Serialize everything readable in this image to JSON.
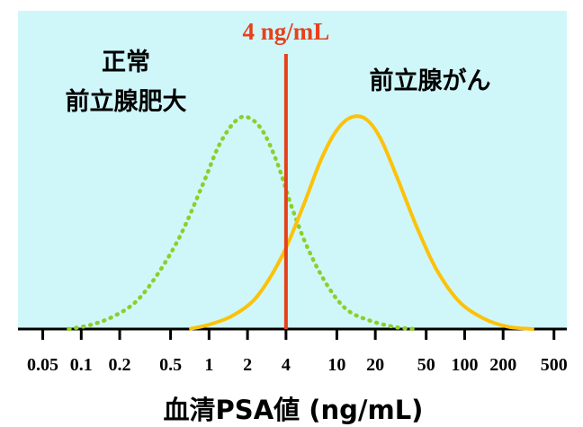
{
  "chart_data": {
    "type": "line",
    "xscale": "log",
    "xlabel": "血清PSA値 (ng/mL)",
    "x_ticks": [
      {
        "value": 0.05,
        "label": "0.05"
      },
      {
        "value": 0.1,
        "label": "0.1"
      },
      {
        "value": 0.2,
        "label": "0.2"
      },
      {
        "value": 0.5,
        "label": "0.5"
      },
      {
        "value": 1,
        "label": "1"
      },
      {
        "value": 2,
        "label": "2"
      },
      {
        "value": 4,
        "label": "4"
      },
      {
        "value": 10,
        "label": "10"
      },
      {
        "value": 20,
        "label": "20"
      },
      {
        "value": 50,
        "label": "50"
      },
      {
        "value": 100,
        "label": "100"
      },
      {
        "value": 200,
        "label": "200"
      },
      {
        "value": 500,
        "label": "500"
      }
    ],
    "xlim": [
      0.032,
      630
    ],
    "ylim": [
      0,
      1
    ],
    "grid": false,
    "background": "#cff7fa",
    "threshold": {
      "value": 4,
      "label": "4 ng/mL",
      "color": "#e8401c"
    },
    "series": [
      {
        "name": "正常\n前立腺肥大",
        "style": "dotted",
        "color": "#8ccf2a",
        "x": [
          0.08,
          0.12,
          0.18,
          0.27,
          0.4,
          0.6,
          0.9,
          1.2,
          1.6,
          2.0,
          2.6,
          3.4,
          4.5,
          6.0,
          8.5,
          12.0,
          18.0,
          28.0,
          40.0
        ],
        "y": [
          0.0,
          0.02,
          0.06,
          0.13,
          0.26,
          0.44,
          0.68,
          0.86,
          0.97,
          0.99,
          0.93,
          0.78,
          0.56,
          0.37,
          0.2,
          0.09,
          0.04,
          0.01,
          0.0
        ]
      },
      {
        "name": "前立腺がん",
        "style": "solid",
        "color": "#fcc20a",
        "x": [
          0.7,
          1.0,
          1.5,
          2.2,
          3.0,
          4.0,
          5.5,
          7.5,
          10.0,
          13.0,
          17.0,
          22.0,
          30.0,
          42.0,
          60.0,
          90.0,
          140.0,
          220.0,
          350.0
        ],
        "y": [
          0.0,
          0.02,
          0.06,
          0.13,
          0.24,
          0.38,
          0.58,
          0.79,
          0.93,
          0.99,
          0.98,
          0.89,
          0.7,
          0.48,
          0.28,
          0.13,
          0.05,
          0.01,
          0.0
        ]
      }
    ]
  }
}
